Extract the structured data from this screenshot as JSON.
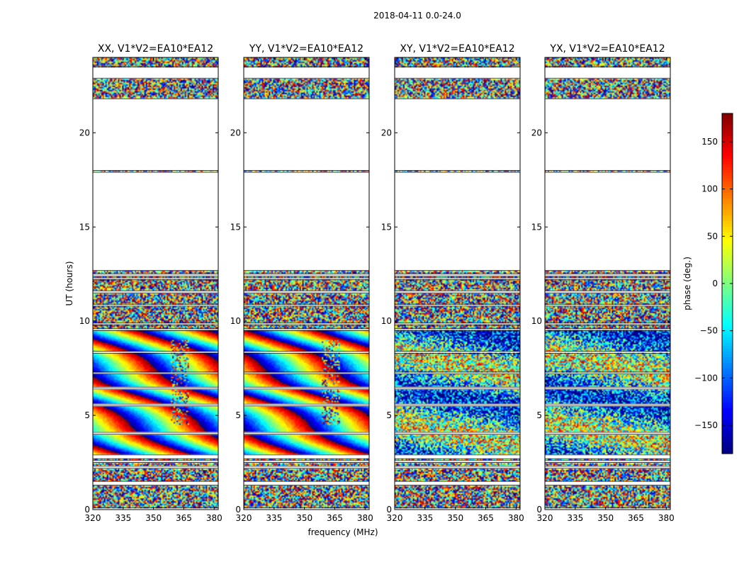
{
  "chart_data": {
    "type": "heatmap",
    "title": "2018-04-11 0.0-24.0",
    "xlabel": "frequency (MHz)",
    "ylabel": "UT (hours)",
    "xlim": [
      320,
      382
    ],
    "ylim": [
      0,
      24
    ],
    "x_ticks": [
      320,
      335,
      350,
      365,
      380
    ],
    "y_ticks": [
      0,
      5,
      10,
      15,
      20
    ],
    "panels": [
      {
        "title": "XX, V1*V2=EA10*EA12",
        "pattern": "smooth"
      },
      {
        "title": "YY, V1*V2=EA10*EA12",
        "pattern": "smooth-shifted"
      },
      {
        "title": "XY, V1*V2=EA10*EA12",
        "pattern": "noisy"
      },
      {
        "title": "YX, V1*V2=EA10*EA12",
        "pattern": "noisy"
      }
    ],
    "data_blocks_hours": [
      [
        0.1,
        1.3
      ],
      [
        1.5,
        2.2
      ],
      [
        2.3,
        2.5
      ],
      [
        2.6,
        2.7
      ],
      [
        2.9,
        4.0
      ],
      [
        4.1,
        5.5
      ],
      [
        5.6,
        6.4
      ],
      [
        6.5,
        7.2
      ],
      [
        7.3,
        8.3
      ],
      [
        8.4,
        9.5
      ],
      [
        9.6,
        9.8
      ],
      [
        9.9,
        10.8
      ],
      [
        10.9,
        11.5
      ],
      [
        11.6,
        12.2
      ],
      [
        12.3,
        12.4
      ],
      [
        12.5,
        12.7
      ],
      [
        17.9,
        18.0
      ],
      [
        21.8,
        22.9
      ],
      [
        23.5,
        24.0
      ]
    ],
    "colorbar": {
      "label": "phase (deg.)",
      "range": [
        -180,
        180
      ],
      "ticks": [
        150,
        100,
        50,
        0,
        -50,
        -100,
        -150
      ],
      "tick_labels": [
        "150",
        "100",
        "50",
        "0",
        "−50",
        "−100",
        "−150"
      ],
      "colormap": "jet"
    }
  }
}
